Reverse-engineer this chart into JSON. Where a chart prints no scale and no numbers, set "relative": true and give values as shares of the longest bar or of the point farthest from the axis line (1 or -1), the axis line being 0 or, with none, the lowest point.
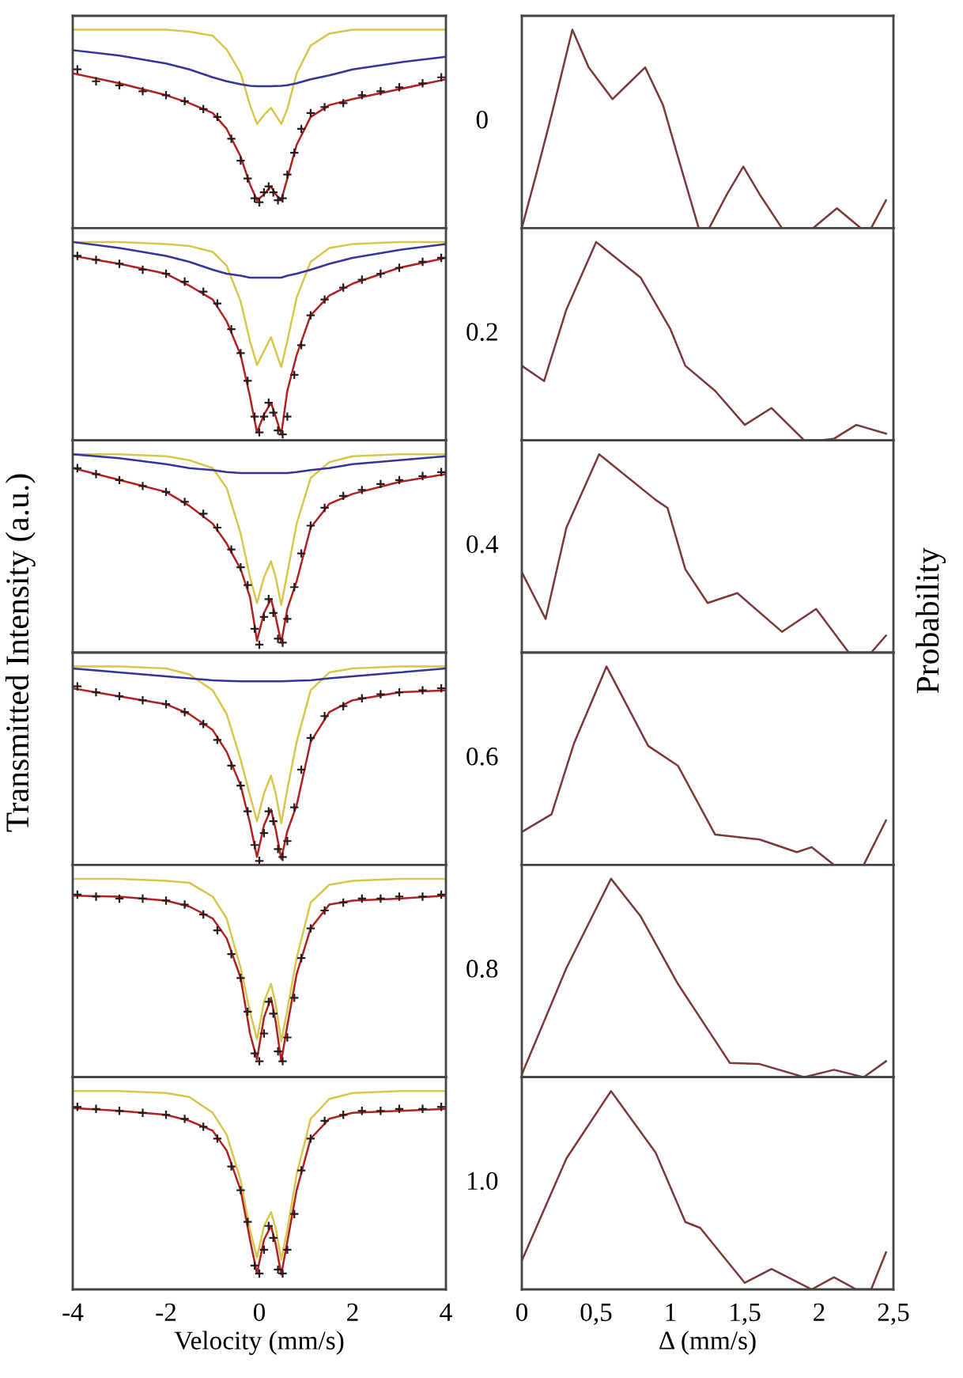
{
  "chart_data": [
    {
      "type": "line",
      "relative": true,
      "xlim": [
        -4,
        4
      ],
      "tick_labels": false,
      "annotations": [
        "0"
      ],
      "series": [
        {
          "type": "line",
          "color": "#d8c64a",
          "x": [
            -4,
            -3,
            -2,
            -1.5,
            -1,
            -0.7,
            -0.4,
            -0.2,
            -0.05,
            0.1,
            0.25,
            0.35,
            0.47,
            0.6,
            0.8,
            1.1,
            1.5,
            2,
            3,
            4
          ],
          "values": [
            1,
            1,
            1,
            0.99,
            0.97,
            0.9,
            0.78,
            0.62,
            0.525,
            0.57,
            0.606,
            0.57,
            0.525,
            0.6,
            0.78,
            0.92,
            0.98,
            1,
            1,
            1
          ]
        },
        {
          "type": "line",
          "color": "#34349a",
          "x": [
            -4,
            -3,
            -2,
            -1.5,
            -1,
            -0.7,
            -0.4,
            -0.2,
            -0.05,
            0.1,
            0.25,
            0.35,
            0.47,
            0.6,
            0.8,
            1.1,
            1.5,
            2,
            3,
            4
          ],
          "values": [
            0.897,
            0.87,
            0.83,
            0.8,
            0.76,
            0.74,
            0.725,
            0.717,
            0.715,
            0.715,
            0.715,
            0.716,
            0.717,
            0.72,
            0.73,
            0.75,
            0.77,
            0.8,
            0.835,
            0.864
          ]
        },
        {
          "type": "scatter",
          "color": "#2a1a1a",
          "marker": "cross",
          "x": [
            -3.9,
            -3.5,
            -3,
            -2.5,
            -2,
            -1.6,
            -1.2,
            -0.9,
            -0.6,
            -0.4,
            -0.25,
            -0.1,
            0,
            0.1,
            0.2,
            0.3,
            0.4,
            0.5,
            0.6,
            0.75,
            0.9,
            1.1,
            1.4,
            1.8,
            2.2,
            2.6,
            3,
            3.5,
            3.9
          ],
          "values": [
            0.8,
            0.74,
            0.72,
            0.69,
            0.67,
            0.64,
            0.6,
            0.56,
            0.45,
            0.34,
            0.25,
            0.15,
            0.13,
            0.18,
            0.21,
            0.18,
            0.14,
            0.15,
            0.27,
            0.38,
            0.5,
            0.58,
            0.61,
            0.63,
            0.67,
            0.69,
            0.71,
            0.73,
            0.76
          ]
        },
        {
          "type": "line",
          "color": "#b02020",
          "x": [
            -4,
            -3,
            -2,
            -1.5,
            -1,
            -0.7,
            -0.4,
            -0.2,
            -0.05,
            0.1,
            0.25,
            0.35,
            0.47,
            0.6,
            0.8,
            1.1,
            1.5,
            2,
            3,
            4
          ],
          "values": [
            0.78,
            0.73,
            0.67,
            0.63,
            0.58,
            0.5,
            0.36,
            0.22,
            0.14,
            0.17,
            0.21,
            0.17,
            0.14,
            0.25,
            0.42,
            0.56,
            0.62,
            0.65,
            0.7,
            0.75
          ]
        }
      ]
    },
    {
      "type": "line",
      "relative": true,
      "xlim": [
        0,
        2.5
      ],
      "tick_labels": false,
      "series": [
        {
          "color": "#7a3838",
          "x": [
            0,
            0.1,
            0.2,
            0.34,
            0.45,
            0.61,
            0.72,
            0.83,
            0.95,
            1.05,
            1.19,
            1.26,
            1.38,
            1.49,
            1.6,
            1.75,
            1.96,
            2.12,
            2.28,
            2.35,
            2.45
          ],
          "values": [
            0,
            0.28,
            0.57,
            1,
            0.81,
            0.65,
            0.73,
            0.81,
            0.62,
            0.36,
            0,
            0,
            0.17,
            0.31,
            0.17,
            0,
            0,
            0.1,
            0,
            0,
            0.14
          ]
        }
      ]
    },
    {
      "type": "line",
      "relative": true,
      "xlim": [
        -4,
        4
      ],
      "tick_labels": false,
      "annotations": [
        "0.2"
      ],
      "series": [
        {
          "type": "line",
          "color": "#d8c64a",
          "x": [
            -4,
            -3,
            -2,
            -1.5,
            -1,
            -0.7,
            -0.4,
            -0.2,
            -0.05,
            0.1,
            0.25,
            0.35,
            0.47,
            0.6,
            0.8,
            1.1,
            1.5,
            2,
            3,
            4
          ],
          "values": [
            1,
            1,
            0.99,
            0.98,
            0.95,
            0.88,
            0.7,
            0.5,
            0.38,
            0.45,
            0.52,
            0.45,
            0.37,
            0.5,
            0.72,
            0.9,
            0.97,
            0.99,
            1,
            1
          ]
        },
        {
          "type": "line",
          "color": "#34349a",
          "x": [
            -4,
            -3,
            -2,
            -1.5,
            -1,
            -0.7,
            -0.4,
            -0.2,
            -0.05,
            0.1,
            0.25,
            0.35,
            0.47,
            0.6,
            0.8,
            1.1,
            1.5,
            2,
            3,
            4
          ],
          "values": [
            1,
            0.97,
            0.93,
            0.9,
            0.86,
            0.84,
            0.83,
            0.82,
            0.82,
            0.82,
            0.82,
            0.82,
            0.82,
            0.83,
            0.84,
            0.86,
            0.89,
            0.92,
            0.96,
            0.99
          ]
        },
        {
          "type": "scatter",
          "color": "#2a1a1a",
          "marker": "cross",
          "x": [
            -3.9,
            -3.5,
            -3,
            -2.5,
            -2,
            -1.6,
            -1.2,
            -0.9,
            -0.6,
            -0.4,
            -0.25,
            -0.1,
            0,
            0.1,
            0.2,
            0.3,
            0.4,
            0.5,
            0.6,
            0.75,
            0.9,
            1.1,
            1.4,
            1.8,
            2.2,
            2.6,
            3,
            3.5,
            3.9
          ],
          "values": [
            0.93,
            0.91,
            0.89,
            0.86,
            0.84,
            0.8,
            0.75,
            0.69,
            0.56,
            0.44,
            0.3,
            0.12,
            0.04,
            0.12,
            0.19,
            0.14,
            0.05,
            0.03,
            0.12,
            0.33,
            0.48,
            0.63,
            0.71,
            0.77,
            0.81,
            0.84,
            0.87,
            0.9,
            0.92
          ]
        },
        {
          "type": "line",
          "color": "#b02020",
          "x": [
            -4,
            -3,
            -2,
            -1.5,
            -1,
            -0.7,
            -0.4,
            -0.2,
            -0.05,
            0.1,
            0.25,
            0.35,
            0.47,
            0.6,
            0.8,
            1.1,
            1.5,
            2,
            3,
            4
          ],
          "values": [
            0.93,
            0.89,
            0.84,
            0.78,
            0.71,
            0.6,
            0.43,
            0.22,
            0.04,
            0.13,
            0.19,
            0.12,
            0.03,
            0.25,
            0.43,
            0.63,
            0.73,
            0.79,
            0.87,
            0.92
          ]
        }
      ]
    },
    {
      "type": "line",
      "relative": true,
      "xlim": [
        0,
        2.5
      ],
      "tick_labels": false,
      "series": [
        {
          "color": "#7a3838",
          "x": [
            0,
            0.15,
            0.3,
            0.5,
            0.8,
            1.0,
            1.1,
            1.3,
            1.5,
            1.68,
            1.9,
            2.0,
            2.1,
            2.25,
            2.45
          ],
          "values": [
            0.376,
            0.299,
            0.66,
            1,
            0.82,
            0.56,
            0.376,
            0.25,
            0.078,
            0.163,
            0,
            0,
            0.008,
            0.078,
            0.034
          ]
        }
      ]
    },
    {
      "type": "line",
      "relative": true,
      "xlim": [
        -4,
        4
      ],
      "tick_labels": false,
      "annotations": [
        "0.4"
      ],
      "ylabel": "Transmitted Intensity (a.u.)",
      "series": [
        {
          "type": "line",
          "color": "#d8c64a",
          "x": [
            -4,
            -3,
            -2,
            -1.5,
            -1,
            -0.7,
            -0.4,
            -0.2,
            -0.05,
            0.1,
            0.25,
            0.35,
            0.47,
            0.6,
            0.8,
            1.1,
            1.5,
            2,
            3,
            4
          ],
          "values": [
            1,
            1,
            0.99,
            0.97,
            0.93,
            0.83,
            0.6,
            0.38,
            0.25,
            0.38,
            0.46,
            0.38,
            0.24,
            0.4,
            0.65,
            0.88,
            0.96,
            0.99,
            1,
            1
          ]
        },
        {
          "type": "line",
          "color": "#34349a",
          "x": [
            -4,
            -3,
            -2,
            -1.5,
            -1,
            -0.7,
            -0.4,
            -0.2,
            -0.05,
            0.1,
            0.25,
            0.35,
            0.47,
            0.6,
            0.8,
            1.1,
            1.5,
            2,
            3,
            4
          ],
          "values": [
            1,
            0.98,
            0.95,
            0.93,
            0.92,
            0.91,
            0.905,
            0.905,
            0.905,
            0.905,
            0.905,
            0.905,
            0.905,
            0.905,
            0.91,
            0.92,
            0.93,
            0.95,
            0.97,
            0.99
          ]
        },
        {
          "type": "scatter",
          "color": "#2a1a1a",
          "marker": "cross",
          "x": [
            -3.9,
            -3.5,
            -3,
            -2.5,
            -2,
            -1.6,
            -1.2,
            -0.9,
            -0.6,
            -0.4,
            -0.25,
            -0.1,
            0,
            0.1,
            0.2,
            0.3,
            0.4,
            0.5,
            0.6,
            0.75,
            0.9,
            1.1,
            1.4,
            1.8,
            2.2,
            2.6,
            3,
            3.5,
            3.9
          ],
          "values": [
            0.93,
            0.9,
            0.87,
            0.84,
            0.81,
            0.76,
            0.7,
            0.63,
            0.52,
            0.43,
            0.34,
            0.12,
            0.04,
            0.18,
            0.27,
            0.2,
            0.07,
            0.05,
            0.17,
            0.33,
            0.5,
            0.64,
            0.73,
            0.79,
            0.82,
            0.85,
            0.87,
            0.89,
            0.91
          ]
        },
        {
          "type": "line",
          "color": "#b02020",
          "x": [
            -4,
            -3,
            -2,
            -1.5,
            -1,
            -0.7,
            -0.4,
            -0.2,
            -0.05,
            0.1,
            0.25,
            0.35,
            0.47,
            0.6,
            0.8,
            1.1,
            1.5,
            2,
            3,
            4
          ],
          "values": [
            0.93,
            0.87,
            0.81,
            0.74,
            0.65,
            0.55,
            0.42,
            0.28,
            0.06,
            0.2,
            0.27,
            0.18,
            0.05,
            0.22,
            0.36,
            0.63,
            0.75,
            0.8,
            0.86,
            0.9
          ]
        }
      ]
    },
    {
      "type": "line",
      "relative": true,
      "xlim": [
        0,
        2.5
      ],
      "tick_labels": false,
      "ylabel": "Probability",
      "series": [
        {
          "color": "#7a3838",
          "x": [
            0,
            0.16,
            0.3,
            0.52,
            0.9,
            0.98,
            1.1,
            1.25,
            1.45,
            1.75,
            1.98,
            2.2,
            2.35,
            2.45
          ],
          "values": [
            0.405,
            0.17,
            0.63,
            1,
            0.77,
            0.73,
            0.42,
            0.25,
            0.3,
            0.105,
            0.22,
            0,
            0,
            0.086
          ]
        }
      ]
    },
    {
      "type": "line",
      "relative": true,
      "xlim": [
        -4,
        4
      ],
      "tick_labels": false,
      "annotations": [
        "0.6"
      ],
      "series": [
        {
          "type": "line",
          "color": "#d8c64a",
          "x": [
            -4,
            -3,
            -2,
            -1.5,
            -1,
            -0.7,
            -0.4,
            -0.2,
            -0.05,
            0.1,
            0.25,
            0.35,
            0.47,
            0.6,
            0.8,
            1.1,
            1.5,
            2,
            3,
            4
          ],
          "values": [
            1,
            1,
            0.99,
            0.96,
            0.88,
            0.76,
            0.53,
            0.35,
            0.22,
            0.36,
            0.45,
            0.36,
            0.21,
            0.38,
            0.62,
            0.88,
            0.97,
            0.99,
            1,
            1
          ]
        },
        {
          "type": "line",
          "color": "#34349a",
          "x": [
            -4,
            -3,
            -2,
            -1.5,
            -1,
            -0.7,
            -0.4,
            -0.2,
            -0.05,
            0.1,
            0.25,
            0.35,
            0.47,
            0.6,
            0.8,
            1.1,
            1.5,
            2,
            3,
            4
          ],
          "values": [
            0.99,
            0.97,
            0.95,
            0.94,
            0.93,
            0.927,
            0.925,
            0.925,
            0.925,
            0.925,
            0.925,
            0.925,
            0.925,
            0.926,
            0.928,
            0.93,
            0.94,
            0.95,
            0.97,
            0.99
          ]
        },
        {
          "type": "scatter",
          "color": "#2a1a1a",
          "marker": "cross",
          "x": [
            -3.9,
            -3.5,
            -3,
            -2.5,
            -2,
            -1.6,
            -1.2,
            -0.9,
            -0.6,
            -0.4,
            -0.25,
            -0.1,
            0,
            0.1,
            0.2,
            0.3,
            0.4,
            0.5,
            0.6,
            0.75,
            0.9,
            1.1,
            1.4,
            1.8,
            2.2,
            2.6,
            3,
            3.5,
            3.9
          ],
          "values": [
            0.9,
            0.87,
            0.85,
            0.83,
            0.81,
            0.77,
            0.71,
            0.63,
            0.5,
            0.4,
            0.27,
            0.1,
            0.02,
            0.16,
            0.27,
            0.22,
            0.08,
            0.04,
            0.12,
            0.29,
            0.48,
            0.64,
            0.75,
            0.8,
            0.84,
            0.86,
            0.87,
            0.88,
            0.89
          ]
        },
        {
          "type": "line",
          "color": "#b02020",
          "x": [
            -4,
            -3,
            -2,
            -1.5,
            -1,
            -0.7,
            -0.4,
            -0.2,
            -0.05,
            0.1,
            0.25,
            0.35,
            0.47,
            0.6,
            0.8,
            1.1,
            1.5,
            2,
            3,
            4
          ],
          "values": [
            0.89,
            0.85,
            0.81,
            0.76,
            0.68,
            0.57,
            0.4,
            0.21,
            0.04,
            0.2,
            0.28,
            0.18,
            0.03,
            0.17,
            0.3,
            0.62,
            0.77,
            0.83,
            0.87,
            0.88
          ]
        }
      ]
    },
    {
      "type": "line",
      "relative": true,
      "xlim": [
        0,
        2.5
      ],
      "tick_labels": false,
      "series": [
        {
          "color": "#7a3838",
          "x": [
            0,
            0.2,
            0.35,
            0.57,
            0.85,
            1.05,
            1.3,
            1.6,
            1.85,
            1.95,
            2.1,
            2.3,
            2.45
          ],
          "values": [
            0.166,
            0.255,
            0.61,
            1,
            0.6,
            0.5,
            0.153,
            0.128,
            0.064,
            0.089,
            0,
            0,
            0.224
          ]
        }
      ]
    },
    {
      "type": "line",
      "relative": true,
      "xlim": [
        -4,
        4
      ],
      "tick_labels": false,
      "annotations": [
        "0.8"
      ],
      "series": [
        {
          "type": "line",
          "color": "#d8c64a",
          "x": [
            -4,
            -3,
            -2,
            -1.5,
            -1,
            -0.7,
            -0.4,
            -0.2,
            -0.05,
            0.1,
            0.25,
            0.35,
            0.47,
            0.6,
            0.8,
            1.1,
            1.5,
            2,
            3,
            4
          ],
          "values": [
            1,
            1,
            0.99,
            0.98,
            0.91,
            0.8,
            0.55,
            0.33,
            0.19,
            0.38,
            0.47,
            0.37,
            0.18,
            0.34,
            0.6,
            0.88,
            0.97,
            0.99,
            1,
            1
          ]
        },
        {
          "type": "scatter",
          "color": "#2a1a1a",
          "marker": "cross",
          "x": [
            -3.9,
            -3.5,
            -3,
            -2.5,
            -2,
            -1.6,
            -1.2,
            -0.9,
            -0.6,
            -0.4,
            -0.25,
            -0.1,
            0,
            0.1,
            0.2,
            0.3,
            0.4,
            0.5,
            0.6,
            0.75,
            0.9,
            1.1,
            1.4,
            1.8,
            2.2,
            2.6,
            3,
            3.5,
            3.9
          ],
          "values": [
            0.92,
            0.91,
            0.9,
            0.9,
            0.89,
            0.87,
            0.82,
            0.74,
            0.62,
            0.5,
            0.33,
            0.12,
            0.08,
            0.22,
            0.38,
            0.32,
            0.13,
            0.08,
            0.2,
            0.4,
            0.6,
            0.75,
            0.84,
            0.88,
            0.9,
            0.9,
            0.91,
            0.91,
            0.92
          ]
        },
        {
          "type": "line",
          "color": "#b02020",
          "x": [
            -4,
            -3,
            -2,
            -1.5,
            -1,
            -0.7,
            -0.4,
            -0.2,
            -0.05,
            0.1,
            0.25,
            0.35,
            0.47,
            0.6,
            0.8,
            1.1,
            1.5,
            2,
            3,
            4
          ],
          "values": [
            0.915,
            0.91,
            0.89,
            0.86,
            0.8,
            0.7,
            0.5,
            0.22,
            0.09,
            0.3,
            0.4,
            0.28,
            0.08,
            0.26,
            0.52,
            0.75,
            0.87,
            0.89,
            0.9,
            0.915
          ]
        }
      ]
    },
    {
      "type": "line",
      "relative": true,
      "xlim": [
        0,
        2.5
      ],
      "tick_labels": false,
      "series": [
        {
          "color": "#7a3838",
          "x": [
            0,
            0.3,
            0.6,
            0.8,
            1.05,
            1.4,
            1.6,
            1.9,
            2.1,
            2.3,
            2.45
          ],
          "values": [
            0.014,
            0.55,
            1,
            0.81,
            0.47,
            0.071,
            0.066,
            0,
            0.037,
            0,
            0.08
          ]
        }
      ]
    },
    {
      "type": "line",
      "relative": true,
      "xlim": [
        -4,
        4
      ],
      "xticks": [
        -4,
        -2,
        0,
        2,
        4
      ],
      "tick_labels": "x",
      "annotations": [
        "1.0"
      ],
      "xlabel": "Velocity (mm/s)",
      "series": [
        {
          "type": "line",
          "color": "#d8c64a",
          "x": [
            -4,
            -3,
            -2,
            -1.5,
            -1,
            -0.7,
            -0.4,
            -0.2,
            -0.05,
            0.1,
            0.25,
            0.35,
            0.47,
            0.6,
            0.8,
            1.1,
            1.5,
            2,
            3,
            4
          ],
          "values": [
            1,
            1,
            0.99,
            0.97,
            0.89,
            0.78,
            0.55,
            0.3,
            0.16,
            0.32,
            0.39,
            0.31,
            0.15,
            0.3,
            0.58,
            0.86,
            0.96,
            0.99,
            1,
            1
          ]
        },
        {
          "type": "scatter",
          "color": "#2a1a1a",
          "marker": "cross",
          "x": [
            -3.9,
            -3.5,
            -3,
            -2.5,
            -2,
            -1.6,
            -1.2,
            -0.9,
            -0.6,
            -0.4,
            -0.25,
            -0.1,
            0,
            0.1,
            0.2,
            0.3,
            0.4,
            0.5,
            0.6,
            0.75,
            0.9,
            1.1,
            1.4,
            1.8,
            2.2,
            2.6,
            3,
            3.5,
            3.9
          ],
          "values": [
            0.92,
            0.91,
            0.9,
            0.89,
            0.88,
            0.86,
            0.82,
            0.76,
            0.62,
            0.5,
            0.34,
            0.12,
            0.08,
            0.2,
            0.32,
            0.26,
            0.1,
            0.08,
            0.2,
            0.38,
            0.6,
            0.76,
            0.85,
            0.88,
            0.9,
            0.9,
            0.91,
            0.91,
            0.92
          ]
        },
        {
          "type": "line",
          "color": "#b02020",
          "x": [
            -4,
            -3,
            -2,
            -1.5,
            -1,
            -0.7,
            -0.4,
            -0.2,
            -0.05,
            0.1,
            0.25,
            0.35,
            0.47,
            0.6,
            0.8,
            1.1,
            1.5,
            2,
            3,
            4
          ],
          "values": [
            0.914,
            0.9,
            0.88,
            0.85,
            0.8,
            0.7,
            0.5,
            0.25,
            0.08,
            0.25,
            0.32,
            0.23,
            0.075,
            0.24,
            0.5,
            0.76,
            0.86,
            0.89,
            0.9,
            0.91
          ]
        }
      ]
    },
    {
      "type": "line",
      "relative": true,
      "xlim": [
        0,
        2.5
      ],
      "xticks": [
        0,
        {
          "value": 0.5,
          "label": "0,5"
        },
        1,
        {
          "value": 1.5,
          "label": "1,5"
        },
        2,
        {
          "value": 2.5,
          "label": "2,5"
        }
      ],
      "tick_labels": "x",
      "xlabel": "Δ (mm/s)",
      "series": [
        {
          "color": "#7a3838",
          "x": [
            0,
            0.3,
            0.6,
            0.9,
            1.1,
            1.2,
            1.5,
            1.68,
            1.95,
            2.1,
            2.25,
            2.35,
            2.45
          ],
          "values": [
            0.145,
            0.66,
            1,
            0.69,
            0.34,
            0.31,
            0.033,
            0.103,
            0,
            0.061,
            0,
            0,
            0.187
          ]
        }
      ]
    }
  ]
}
